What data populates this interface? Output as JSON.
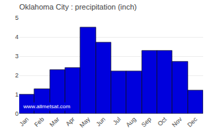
{
  "chart_data": {
    "type": "bar",
    "title": "Oklahoma City : precipitation (inch)",
    "categories": [
      "Jan",
      "Feb",
      "Mar",
      "Apr",
      "May",
      "Jun",
      "Jul",
      "Aug",
      "Sep",
      "Oct",
      "Nov",
      "Dec"
    ],
    "values": [
      1.0,
      1.3,
      2.3,
      2.4,
      4.5,
      3.7,
      2.2,
      2.2,
      3.3,
      3.3,
      2.7,
      1.2
    ],
    "color": "#0000dd",
    "ylim": [
      0,
      5
    ],
    "yticks": [
      0,
      1,
      2,
      3,
      4,
      5
    ],
    "grid": true,
    "annotations": [
      {
        "text": "www.allmetsat.com"
      }
    ]
  }
}
